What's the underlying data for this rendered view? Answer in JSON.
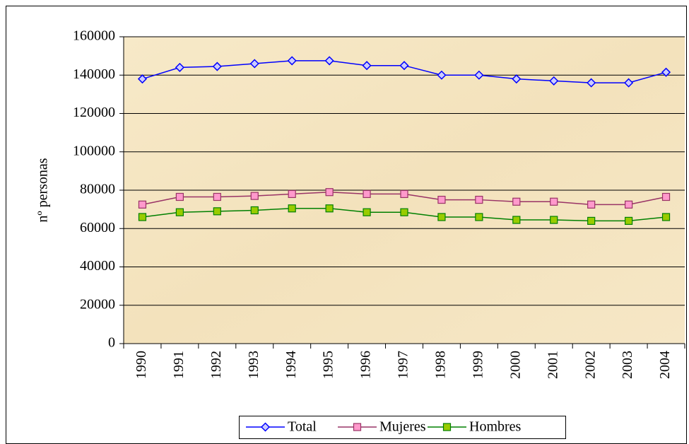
{
  "chart_data": {
    "type": "line",
    "y_label": "nº personas",
    "categories": [
      "1990",
      "1991",
      "1992",
      "1993",
      "1994",
      "1995",
      "1996",
      "1997",
      "1998",
      "1999",
      "2000",
      "2001",
      "2002",
      "2003",
      "2004"
    ],
    "series": [
      {
        "name": "Total",
        "color": "#0000ff",
        "marker": "diamond",
        "marker_fill": "#ccccff",
        "values": [
          138000,
          144000,
          144500,
          146000,
          147500,
          147500,
          145000,
          145000,
          140000,
          140000,
          138000,
          137000,
          136000,
          136000,
          141500
        ]
      },
      {
        "name": "Mujeres",
        "color": "#993366",
        "marker": "square",
        "marker_fill": "#ff99cc",
        "values": [
          72500,
          76500,
          76500,
          77000,
          78000,
          79000,
          78000,
          78000,
          75000,
          75000,
          74000,
          74000,
          72500,
          72500,
          76500
        ]
      },
      {
        "name": "Hombres",
        "color": "#008000",
        "marker": "square",
        "marker_fill": "#99cc00",
        "values": [
          66000,
          68500,
          69000,
          69500,
          70500,
          70500,
          68500,
          68500,
          66000,
          66000,
          64500,
          64500,
          64000,
          64000,
          66000
        ]
      }
    ],
    "ylim": [
      0,
      160000
    ],
    "yticks": [
      0,
      20000,
      40000,
      60000,
      80000,
      100000,
      120000,
      140000,
      160000
    ],
    "grid": true,
    "legend": "bottom"
  }
}
